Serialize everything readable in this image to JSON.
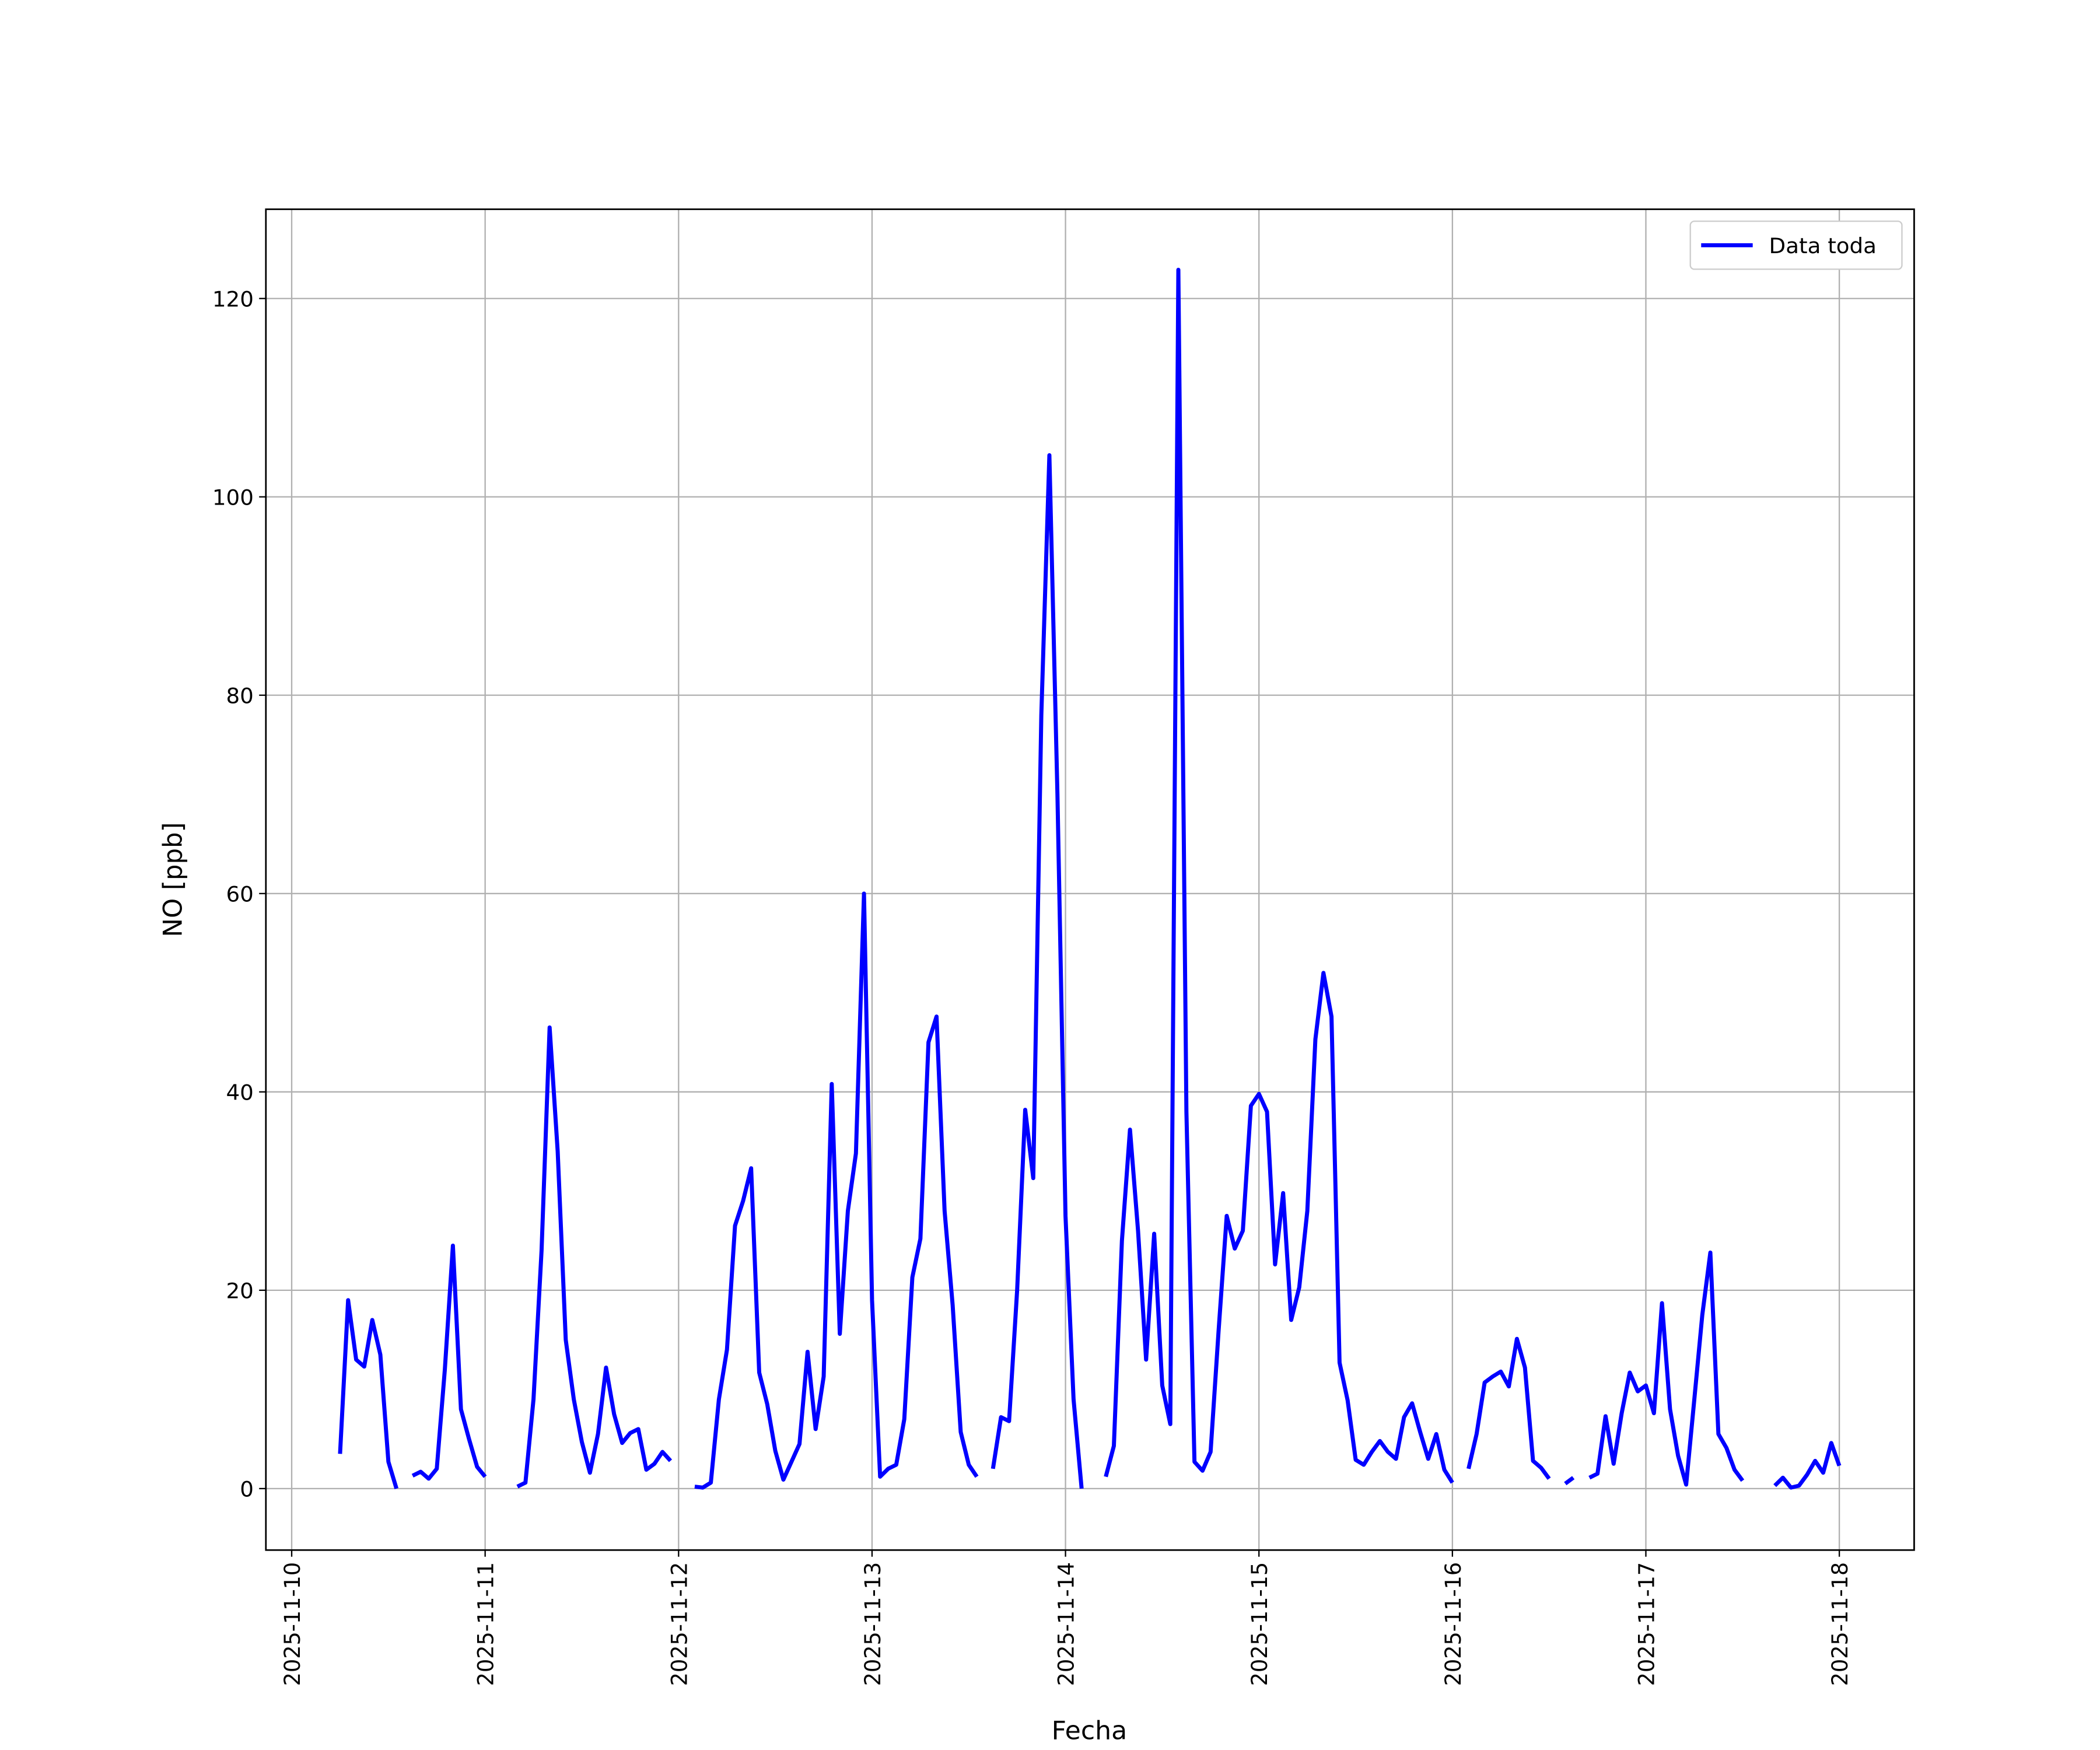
{
  "chart_data": {
    "type": "line",
    "x_label": "Fecha",
    "y_label": "NO [ppb]",
    "x": [
      "2025-11-10 06:00",
      "2025-11-10 07:00",
      "2025-11-10 08:00",
      "2025-11-10 09:00",
      "2025-11-10 10:00",
      "2025-11-10 11:00",
      "2025-11-10 12:00",
      "2025-11-10 13:00",
      "2025-11-10 14:00",
      "2025-11-10 15:00",
      "2025-11-10 16:00",
      "2025-11-10 17:00",
      "2025-11-10 18:00",
      "2025-11-10 19:00",
      "2025-11-10 20:00",
      "2025-11-10 21:00",
      "2025-11-10 22:00",
      "2025-11-10 23:00",
      "2025-11-11 00:00",
      "2025-11-11 01:00",
      "2025-11-11 04:00",
      "2025-11-11 05:00",
      "2025-11-11 06:00",
      "2025-11-11 07:00",
      "2025-11-11 08:00",
      "2025-11-11 09:00",
      "2025-11-11 10:00",
      "2025-11-11 11:00",
      "2025-11-11 12:00",
      "2025-11-11 13:00",
      "2025-11-11 14:00",
      "2025-11-11 15:00",
      "2025-11-11 16:00",
      "2025-11-11 17:00",
      "2025-11-11 18:00",
      "2025-11-11 19:00",
      "2025-11-11 20:00",
      "2025-11-11 21:00",
      "2025-11-11 22:00",
      "2025-11-11 23:00",
      "2025-11-12 00:00",
      "2025-11-12 02:00",
      "2025-11-12 03:00",
      "2025-11-12 04:00",
      "2025-11-12 05:00",
      "2025-11-12 06:00",
      "2025-11-12 07:00",
      "2025-11-12 08:00",
      "2025-11-12 09:00",
      "2025-11-12 10:00",
      "2025-11-12 11:00",
      "2025-11-12 12:00",
      "2025-11-12 13:00",
      "2025-11-12 14:00",
      "2025-11-12 15:00",
      "2025-11-12 16:00",
      "2025-11-12 17:00",
      "2025-11-12 18:00",
      "2025-11-12 19:00",
      "2025-11-12 20:00",
      "2025-11-12 21:00",
      "2025-11-12 22:00",
      "2025-11-12 23:00",
      "2025-11-13 00:00",
      "2025-11-13 01:00",
      "2025-11-13 02:00",
      "2025-11-13 03:00",
      "2025-11-13 04:00",
      "2025-11-13 05:00",
      "2025-11-13 06:00",
      "2025-11-13 07:00",
      "2025-11-13 08:00",
      "2025-11-13 09:00",
      "2025-11-13 10:00",
      "2025-11-13 11:00",
      "2025-11-13 12:00",
      "2025-11-13 13:00",
      "2025-11-13 14:00",
      "2025-11-13 15:00",
      "2025-11-13 16:00",
      "2025-11-13 17:00",
      "2025-11-13 18:00",
      "2025-11-13 19:00",
      "2025-11-13 20:00",
      "2025-11-13 21:00",
      "2025-11-13 22:00",
      "2025-11-13 23:00",
      "2025-11-14 00:00",
      "2025-11-14 01:00",
      "2025-11-14 02:00",
      "2025-11-14 03:00",
      "2025-11-14 05:00",
      "2025-11-14 06:00",
      "2025-11-14 07:00",
      "2025-11-14 08:00",
      "2025-11-14 09:00",
      "2025-11-14 10:00",
      "2025-11-14 11:00",
      "2025-11-14 12:00",
      "2025-11-14 13:00",
      "2025-11-14 14:00",
      "2025-11-14 15:00",
      "2025-11-14 16:00",
      "2025-11-14 17:00",
      "2025-11-14 18:00",
      "2025-11-14 19:00",
      "2025-11-14 20:00",
      "2025-11-14 21:00",
      "2025-11-14 22:00",
      "2025-11-14 23:00",
      "2025-11-15 00:00",
      "2025-11-15 01:00",
      "2025-11-15 02:00",
      "2025-11-15 03:00",
      "2025-11-15 04:00",
      "2025-11-15 05:00",
      "2025-11-15 06:00",
      "2025-11-15 07:00",
      "2025-11-15 08:00",
      "2025-11-15 09:00",
      "2025-11-15 10:00",
      "2025-11-15 11:00",
      "2025-11-15 12:00",
      "2025-11-15 13:00",
      "2025-11-15 14:00",
      "2025-11-15 15:00",
      "2025-11-15 16:00",
      "2025-11-15 17:00",
      "2025-11-15 18:00",
      "2025-11-15 19:00",
      "2025-11-15 20:00",
      "2025-11-15 21:00",
      "2025-11-15 22:00",
      "2025-11-15 23:00",
      "2025-11-16 00:00",
      "2025-11-16 01:00",
      "2025-11-16 02:00",
      "2025-11-16 03:00",
      "2025-11-16 04:00",
      "2025-11-16 05:00",
      "2025-11-16 06:00",
      "2025-11-16 07:00",
      "2025-11-16 08:00",
      "2025-11-16 09:00",
      "2025-11-16 10:00",
      "2025-11-16 11:00",
      "2025-11-16 12:00",
      "2025-11-16 13:00",
      "2025-11-16 14:00",
      "2025-11-16 15:00",
      "2025-11-16 16:00",
      "2025-11-16 17:00",
      "2025-11-16 18:00",
      "2025-11-16 19:00",
      "2025-11-16 20:00",
      "2025-11-16 21:00",
      "2025-11-16 22:00",
      "2025-11-16 23:00",
      "2025-11-17 00:00",
      "2025-11-17 01:00",
      "2025-11-17 02:00",
      "2025-11-17 03:00",
      "2025-11-17 04:00",
      "2025-11-17 05:00",
      "2025-11-17 06:00",
      "2025-11-17 07:00",
      "2025-11-17 08:00",
      "2025-11-17 09:00",
      "2025-11-17 10:00",
      "2025-11-17 11:00",
      "2025-11-17 12:00",
      "2025-11-17 13:00",
      "2025-11-17 16:00",
      "2025-11-17 17:00",
      "2025-11-17 18:00",
      "2025-11-17 19:00",
      "2025-11-17 20:00",
      "2025-11-17 21:00",
      "2025-11-17 22:00",
      "2025-11-17 23:00",
      "2025-11-18 00:00"
    ],
    "series": [
      {
        "name": "Data toda",
        "color": "#0000ff",
        "values": [
          3.5,
          19,
          13,
          12.3,
          17,
          13.5,
          2.7,
          0,
          null,
          1.3,
          1.7,
          1.0,
          2,
          12,
          24.5,
          8,
          5,
          2.2,
          1.2,
          null,
          0.2,
          0.6,
          9,
          24,
          46.5,
          34,
          15,
          9,
          4.7,
          1.6,
          5.5,
          12.2,
          7.5,
          4.6,
          5.6,
          6,
          1.9,
          2.5,
          3.7,
          2.8,
          null,
          0.2,
          0.1,
          0.6,
          9,
          14,
          26.5,
          29,
          32.3,
          11.7,
          8.5,
          3.8,
          0.9,
          2.7,
          4.5,
          13.8,
          6,
          11.3,
          40.8,
          15.6,
          28,
          33.8,
          60,
          19,
          1.2,
          2,
          2.4,
          7,
          21.3,
          25.2,
          45,
          47.6,
          28,
          18.5,
          5.7,
          2.4,
          1.2,
          null,
          2,
          7.2,
          6.8,
          20,
          38.2,
          31.3,
          78,
          104.2,
          70,
          27.5,
          9,
          0,
          null,
          1.2,
          4.3,
          25,
          36.2,
          26,
          13,
          25.7,
          10.4,
          6.5,
          122.9,
          38,
          2.7,
          1.8,
          3.7,
          16,
          27.5,
          24.2,
          26,
          38.6,
          39.8,
          38,
          22.6,
          29.8,
          17,
          20.3,
          28,
          45.3,
          52,
          47.6,
          12.7,
          8.9,
          2.9,
          2.4,
          3.7,
          4.8,
          3.7,
          3,
          7.2,
          8.6,
          5.7,
          3,
          5.5,
          1.9,
          0.6,
          null,
          2,
          5.5,
          10.7,
          11.3,
          11.8,
          10.3,
          15.1,
          12.2,
          2.8,
          2.1,
          1,
          null,
          0.5,
          1.1,
          null,
          1.1,
          1.5,
          7.3,
          2.5,
          7.6,
          11.7,
          9.8,
          10.4,
          7.6,
          18.7,
          8,
          3.3,
          0.4,
          8.9,
          17.5,
          23.8,
          5.5,
          4.1,
          1.9,
          0.8,
          null,
          0.3,
          1.1,
          0.1,
          0.3,
          1.4,
          2.8,
          1.6,
          4.6,
          2.3
        ]
      }
    ],
    "xlim": [
      "2025-11-09 20:48",
      "2025-11-18 09:17"
    ],
    "xticks": [
      "2025-11-10",
      "2025-11-11",
      "2025-11-12",
      "2025-11-13",
      "2025-11-14",
      "2025-11-15",
      "2025-11-16",
      "2025-11-17",
      "2025-11-18"
    ],
    "ylim": [
      -6.2,
      129.0
    ],
    "yticks": [
      0,
      20,
      40,
      60,
      80,
      100,
      120
    ],
    "grid": true,
    "legend": "upper right"
  }
}
